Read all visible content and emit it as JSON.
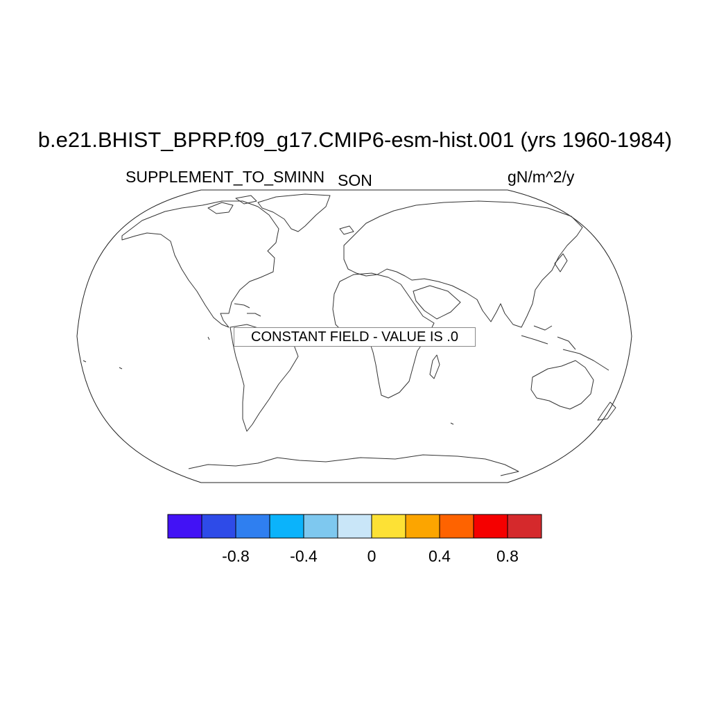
{
  "plot": {
    "title": "b.e21.BHIST_BPRP.f09_g17.CMIP6-esm-hist.001 (yrs 1960-1984)",
    "variable": "SUPPLEMENT_TO_SMINN",
    "season": "SON",
    "units": "gN/m^2/y",
    "message": "CONSTANT FIELD - VALUE IS .0",
    "projection": "robinson"
  },
  "colorbar": {
    "colors": [
      "#4212f5",
      "#2e4be8",
      "#2f7ff0",
      "#0bb3fb",
      "#7ec8ef",
      "#c9e6f8",
      "#fde135",
      "#fca500",
      "#fe6300",
      "#f50000",
      "#d5292c"
    ],
    "tick_labels": [
      "-0.8",
      "-0.4",
      "0",
      "0.4",
      "0.8"
    ]
  }
}
